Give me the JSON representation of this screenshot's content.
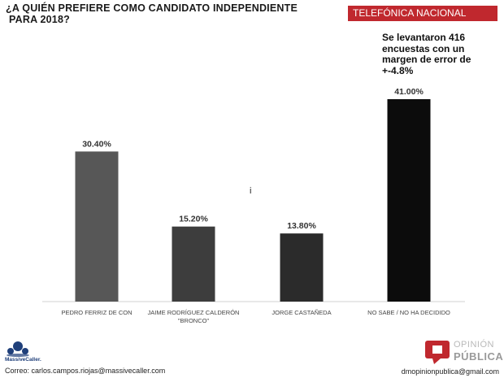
{
  "header": {
    "title_line1": "¿A QUIÉN PREFIERE COMO CANDIDATO INDEPENDIENTE",
    "title_line2": "PARA 2018?",
    "badge": "TELEFÓNICA NACIONAL"
  },
  "note": {
    "line1": "Se levantaron 416",
    "line2": "encuestas con un",
    "line3": "margen de error de",
    "line4": "+-4.8%"
  },
  "stray_mark": "i",
  "chart_data": {
    "type": "bar",
    "categories": [
      "PEDRO FERRIZ DE CON",
      "JAIME RODRÍGUEZ CALDERÓN \"BRONCO\"",
      "JORGE CASTAÑEDA",
      "NO SABE / NO HA DECIDIDO"
    ],
    "category_lines": [
      [
        "PEDRO FERRIZ DE CON"
      ],
      [
        "JAIME RODRÍGUEZ CALDERÓN",
        "\"BRONCO\""
      ],
      [
        "JORGE CASTAÑEDA"
      ],
      [
        "NO SABE / NO HA DECIDIDO"
      ]
    ],
    "values": [
      30.4,
      15.2,
      13.8,
      41.0
    ],
    "value_labels": [
      "30.40%",
      "15.20%",
      "13.80%",
      "41.00%"
    ],
    "colors": [
      "#575757",
      "#3d3d3d",
      "#2b2b2b",
      "#0c0c0c"
    ],
    "ylim": [
      0,
      41
    ],
    "grid": false,
    "xlabel": "",
    "ylabel": ""
  },
  "logos": {
    "left_caption": "MassiveCaller.",
    "right_line1": "OPINIÓN",
    "right_line2": "PÚBLICA",
    "left_color": "#1f3f7a",
    "right_color": "#c0282e"
  },
  "footer": {
    "email_left": "Correo: carlos.campos.riojas@massivecaller.com",
    "email_right": "dmopinionpublica@gmail.com"
  }
}
